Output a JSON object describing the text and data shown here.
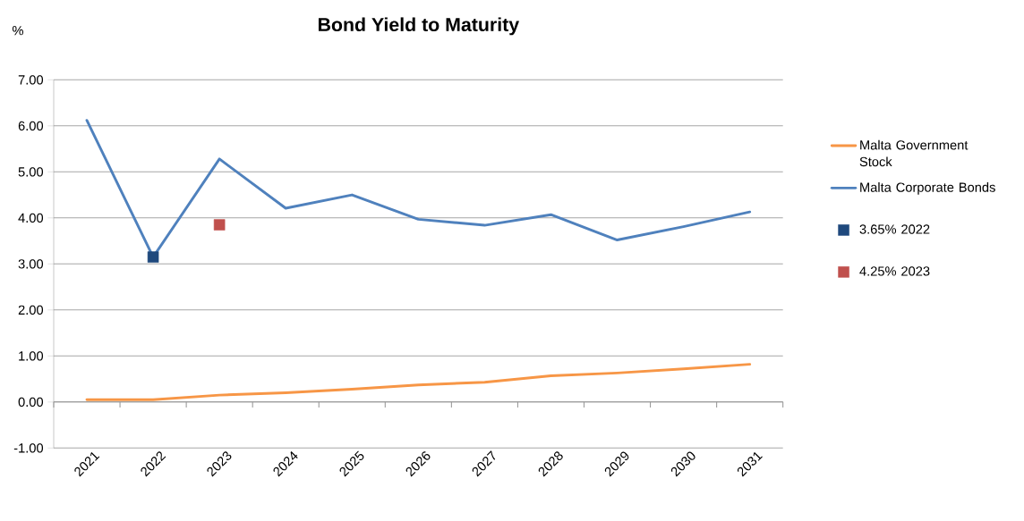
{
  "chart_data": {
    "type": "line",
    "title": "Bond Yield to Maturity",
    "ylabel": "%",
    "categories": [
      "2021",
      "2022",
      "2023",
      "2024",
      "2025",
      "2026",
      "2027",
      "2028",
      "2029",
      "2030",
      "2031"
    ],
    "series": [
      {
        "name": "Malta Government Stock",
        "color": "#f79646",
        "values": [
          0.05,
          0.05,
          0.15,
          0.2,
          0.28,
          0.37,
          0.43,
          0.57,
          0.63,
          0.72,
          0.82
        ]
      },
      {
        "name": "Malta Corporate Bonds",
        "color": "#4f81bd",
        "values": [
          6.12,
          3.15,
          5.28,
          4.21,
          4.5,
          3.97,
          3.84,
          4.07,
          3.52,
          3.81,
          4.13
        ]
      },
      {
        "name": "3.65% 2022",
        "type": "scatter",
        "marker": "square",
        "color": "#1f497d",
        "values": [
          null,
          3.15,
          null,
          null,
          null,
          null,
          null,
          null,
          null,
          null,
          null
        ]
      },
      {
        "name": "4.25% 2023",
        "type": "scatter",
        "marker": "square",
        "color": "#c0504d",
        "values": [
          null,
          null,
          3.85,
          null,
          null,
          null,
          null,
          null,
          null,
          null,
          null
        ]
      }
    ],
    "ylim": [
      -1,
      7
    ],
    "yticks": [
      {
        "value": -1,
        "label": "-1.00"
      },
      {
        "value": 0,
        "label": "0.00"
      },
      {
        "value": 1,
        "label": "1.00"
      },
      {
        "value": 2,
        "label": "2.00"
      },
      {
        "value": 3,
        "label": "3.00"
      },
      {
        "value": 4,
        "label": "4.00"
      },
      {
        "value": 5,
        "label": "5.00"
      },
      {
        "value": 6,
        "label": "6.00"
      },
      {
        "value": 7,
        "label": "7.00"
      }
    ],
    "grid": "y",
    "legend": "right"
  }
}
